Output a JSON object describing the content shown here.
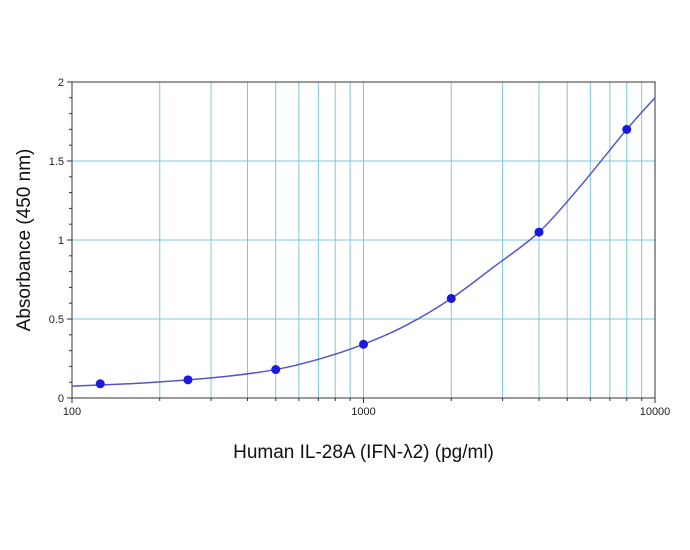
{
  "chart_data": {
    "type": "scatter",
    "title": "",
    "xlabel": "Human IL-28A (IFN-λ2) (pg/ml)",
    "ylabel": "Absorbance (450 nm)",
    "x_scale": "log",
    "xlim": [
      100,
      10000
    ],
    "ylim": [
      0,
      2
    ],
    "x_ticks": [
      "100",
      "1000",
      "10000"
    ],
    "y_ticks": [
      "0",
      "0.5",
      "1",
      "1.5",
      "2"
    ],
    "grid": true,
    "legend": "none",
    "series": [
      {
        "x": [
          125,
          250,
          500,
          1000,
          2000,
          4000,
          8000
        ],
        "y": [
          0.09,
          0.115,
          0.18,
          0.34,
          0.63,
          1.05,
          1.7
        ]
      }
    ],
    "fit_curve": {
      "x": [
        100,
        125,
        175,
        250,
        350,
        500,
        700,
        1000,
        1400,
        2000,
        2800,
        4000,
        5600,
        8000,
        10000
      ],
      "y": [
        0.075,
        0.082,
        0.095,
        0.115,
        0.14,
        0.18,
        0.245,
        0.34,
        0.46,
        0.63,
        0.83,
        1.05,
        1.35,
        1.7,
        1.9
      ]
    },
    "colors": {
      "grid": "#7fc8da",
      "marker": "#1a1adf",
      "curve": "#5555c8",
      "axis": "#333333"
    }
  }
}
